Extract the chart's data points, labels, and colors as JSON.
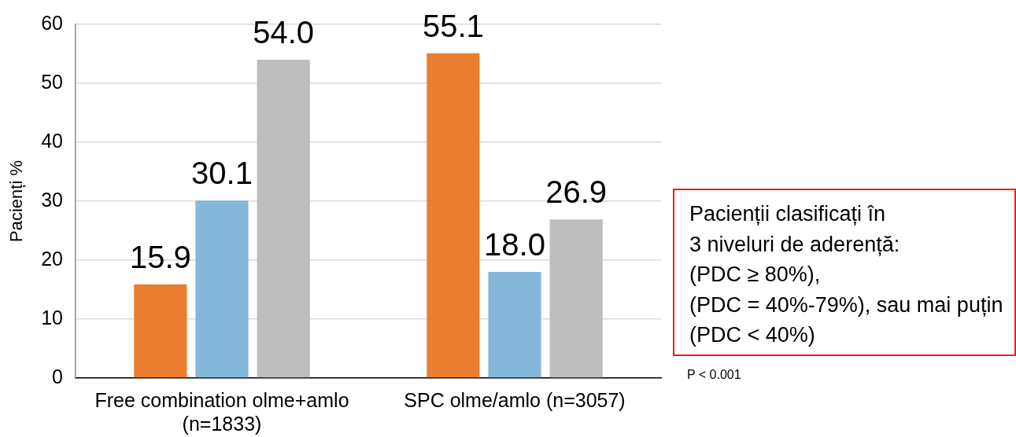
{
  "chart_data": [
    {
      "type": "bar",
      "ylabel": "Pacienți %",
      "categories": [
        "Free combination olme+amlo (n=1833)",
        "SPC olme/amlo (n=3057)"
      ],
      "series": [
        {
          "color": "#e97f2e",
          "values": [
            15.9,
            55.1
          ],
          "value_labels": [
            "15.9",
            "55.1"
          ]
        },
        {
          "color": "#84b7d9",
          "values": [
            30.1,
            18.0
          ],
          "value_labels": [
            "30.1",
            "18.0"
          ]
        },
        {
          "color": "#bdbdbd",
          "values": [
            54.0,
            26.9
          ],
          "value_labels": [
            "54.0",
            "26.9"
          ]
        }
      ],
      "ylim": [
        0,
        60
      ],
      "yticks": [
        0,
        10,
        20,
        30,
        40,
        50,
        60
      ],
      "grid": "y",
      "annotations": [
        "P < 0.001"
      ]
    },
    {
      "type": "other",
      "annotations": [
        "Pacienții clasificați în",
        "3 niveluri de aderență:",
        "(PDC ≥ 80%),",
        "(PDC = 40%-79%), sau mai puțin",
        "(PDC < 40%)"
      ]
    }
  ]
}
